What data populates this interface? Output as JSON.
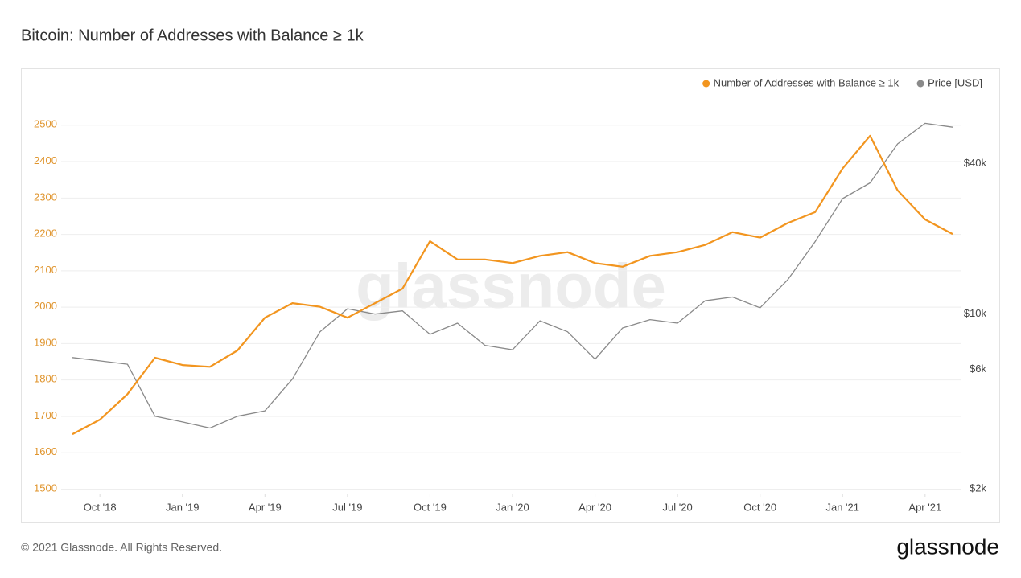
{
  "chart_data": {
    "type": "line",
    "title": "Bitcoin: Number of Addresses with Balance ≥ 1k",
    "watermark": "glassnode",
    "x": [
      "2018-09",
      "2018-10",
      "2018-11",
      "2018-12",
      "2019-01",
      "2019-02",
      "2019-03",
      "2019-04",
      "2019-05",
      "2019-06",
      "2019-07",
      "2019-08",
      "2019-09",
      "2019-10",
      "2019-11",
      "2019-12",
      "2020-01",
      "2020-02",
      "2020-03",
      "2020-04",
      "2020-05",
      "2020-06",
      "2020-07",
      "2020-08",
      "2020-09",
      "2020-10",
      "2020-11",
      "2020-12",
      "2021-01",
      "2021-02",
      "2021-03",
      "2021-04",
      "2021-05"
    ],
    "xlim": [
      "2018-09",
      "2021-05"
    ],
    "xticks": [
      {
        "value": "2018-10",
        "label": "Oct '18"
      },
      {
        "value": "2019-01",
        "label": "Jan '19"
      },
      {
        "value": "2019-04",
        "label": "Apr '19"
      },
      {
        "value": "2019-07",
        "label": "Jul '19"
      },
      {
        "value": "2019-10",
        "label": "Oct '19"
      },
      {
        "value": "2020-01",
        "label": "Jan '20"
      },
      {
        "value": "2020-04",
        "label": "Apr '20"
      },
      {
        "value": "2020-07",
        "label": "Jul '20"
      },
      {
        "value": "2020-10",
        "label": "Oct '20"
      },
      {
        "value": "2021-01",
        "label": "Jan '21"
      },
      {
        "value": "2021-04",
        "label": "Apr '21"
      }
    ],
    "ylim": [
      1500,
      2600
    ],
    "yticks": [
      1500,
      1600,
      1700,
      1800,
      1900,
      2000,
      2100,
      2200,
      2300,
      2400,
      2500
    ],
    "y2lim": [
      2000,
      80000
    ],
    "y2_log": true,
    "y2ticks": [
      {
        "value": 2000,
        "label": "$2k"
      },
      {
        "value": 6000,
        "label": "$6k"
      },
      {
        "value": 10000,
        "label": "$10k"
      },
      {
        "value": 40000,
        "label": "$40k"
      }
    ],
    "grid": true,
    "legend": "top-right",
    "series": [
      {
        "name": "Number of Addresses with Balance ≥ 1k",
        "color": "#f2951f",
        "values": [
          1650,
          1690,
          1760,
          1860,
          1840,
          1835,
          1880,
          1970,
          2010,
          2000,
          1970,
          2010,
          2050,
          2180,
          2130,
          2130,
          2120,
          2140,
          2150,
          2120,
          2110,
          2140,
          2150,
          2170,
          2205,
          2190,
          2230,
          2260,
          2380,
          2470,
          2320,
          2240,
          2200
        ]
      },
      {
        "name": "Price [USD]",
        "color": "#8a8a8a",
        "axis": "y2",
        "values": [
          6700,
          6500,
          6300,
          3900,
          3700,
          3500,
          3900,
          4100,
          5500,
          8500,
          10500,
          10000,
          10300,
          8300,
          9200,
          7500,
          7200,
          9400,
          8500,
          6600,
          8800,
          9500,
          9200,
          11300,
          11700,
          10600,
          13700,
          19500,
          29000,
          33500,
          48000,
          58000,
          56000
        ]
      }
    ]
  },
  "footer": {
    "copyright": "© 2021 Glassnode. All Rights Reserved.",
    "logo": "glassnode"
  }
}
